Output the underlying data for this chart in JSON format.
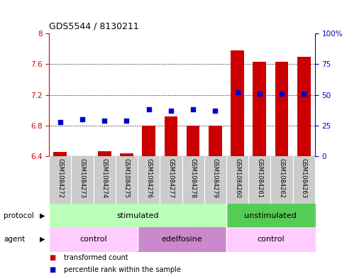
{
  "title": "GDS5544 / 8130211",
  "samples": [
    "GSM1084272",
    "GSM1084273",
    "GSM1084274",
    "GSM1084275",
    "GSM1084276",
    "GSM1084277",
    "GSM1084278",
    "GSM1084279",
    "GSM1084260",
    "GSM1084261",
    "GSM1084262",
    "GSM1084263"
  ],
  "transformed_count": [
    6.46,
    6.4,
    6.47,
    6.44,
    6.8,
    6.92,
    6.8,
    6.8,
    7.78,
    7.63,
    7.63,
    7.7
  ],
  "percentile_rank": [
    28,
    30,
    29,
    29,
    38,
    37,
    38,
    37,
    52,
    51,
    51,
    51
  ],
  "ylim_left": [
    6.4,
    8.0
  ],
  "ylim_right": [
    0,
    100
  ],
  "yticks_left": [
    6.4,
    6.8,
    7.2,
    7.6,
    8.0
  ],
  "yticks_right": [
    0,
    25,
    50,
    75,
    100
  ],
  "bar_color": "#cc0000",
  "dot_color": "#0000cc",
  "bar_bottom": 6.4,
  "bar_width": 0.6,
  "dot_size": 22,
  "protocol_groups": [
    {
      "label": "stimulated",
      "start": 0,
      "end": 7,
      "color": "#bbffbb"
    },
    {
      "label": "unstimulated",
      "start": 8,
      "end": 11,
      "color": "#55cc55"
    }
  ],
  "agent_groups": [
    {
      "label": "control",
      "start": 0,
      "end": 3,
      "color": "#ffccff"
    },
    {
      "label": "edelfosine",
      "start": 4,
      "end": 7,
      "color": "#cc88cc"
    },
    {
      "label": "control",
      "start": 8,
      "end": 11,
      "color": "#ffccff"
    }
  ],
  "legend_items": [
    {
      "label": "transformed count",
      "color": "#cc0000"
    },
    {
      "label": "percentile rank within the sample",
      "color": "#0000cc"
    }
  ],
  "protocol_label": "protocol",
  "agent_label": "agent",
  "background_color": "#ffffff"
}
